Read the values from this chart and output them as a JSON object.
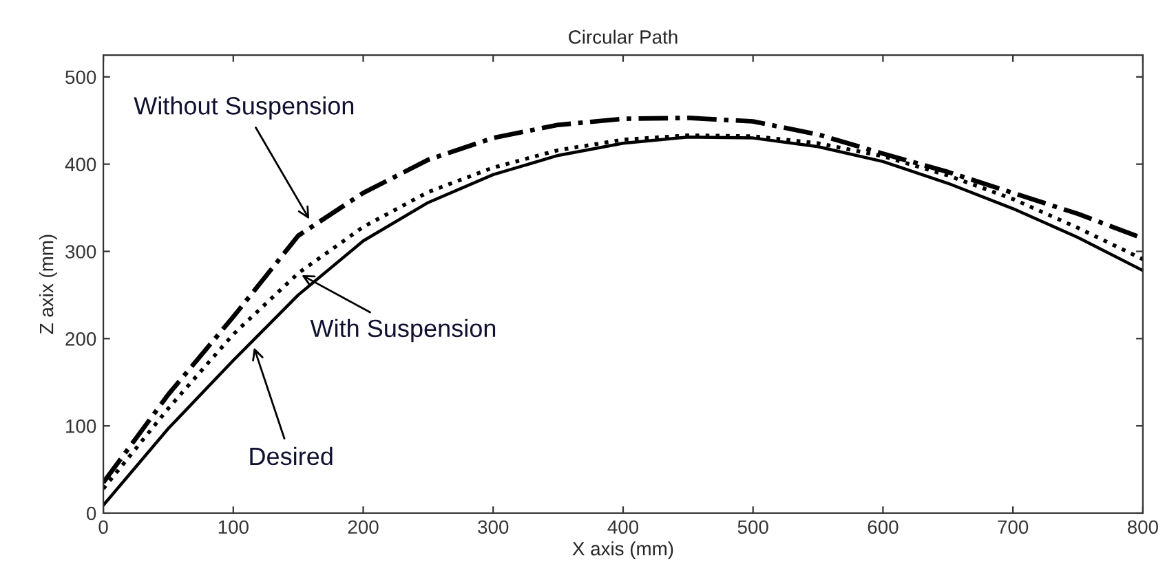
{
  "chart_data": {
    "type": "line",
    "title": "Circular Path",
    "xlabel": "X axis (mm)",
    "ylabel": "Z axix (mm)",
    "x": [
      0,
      50,
      100,
      150,
      200,
      250,
      300,
      350,
      400,
      450,
      500,
      550,
      600,
      650,
      700,
      750,
      800
    ],
    "series": [
      {
        "color": "#000000",
        "line_style": "solid",
        "values": [
          9,
          97,
          175,
          250,
          312,
          356,
          388,
          410,
          424,
          431,
          430,
          420,
          403,
          378,
          349,
          316,
          278
        ]
      },
      {
        "color": "#000000",
        "line_style": "dotted",
        "values": [
          28,
          120,
          205,
          275,
          328,
          368,
          396,
          416,
          428,
          433,
          432,
          424,
          409,
          387,
          360,
          327,
          291
        ]
      },
      {
        "color": "#000000",
        "line_style": "dashdot",
        "values": [
          35,
          136,
          225,
          318,
          367,
          405,
          430,
          445,
          452,
          453,
          449,
          434,
          412,
          391,
          367,
          343,
          315
        ]
      }
    ],
    "annotations": [
      {
        "text": "Without Suspension",
        "x": 160,
        "y": 333
      },
      {
        "text": "With Suspension",
        "x": 150,
        "y": 275
      },
      {
        "text": "Desired",
        "x": 115,
        "y": 194
      }
    ],
    "xlim": [
      0,
      800
    ],
    "ylim": [
      0,
      525
    ],
    "xticks": [
      0,
      100,
      200,
      300,
      400,
      500,
      600,
      700,
      800
    ],
    "yticks": [
      0,
      100,
      200,
      300,
      400,
      500
    ],
    "grid": false,
    "legend": false
  }
}
